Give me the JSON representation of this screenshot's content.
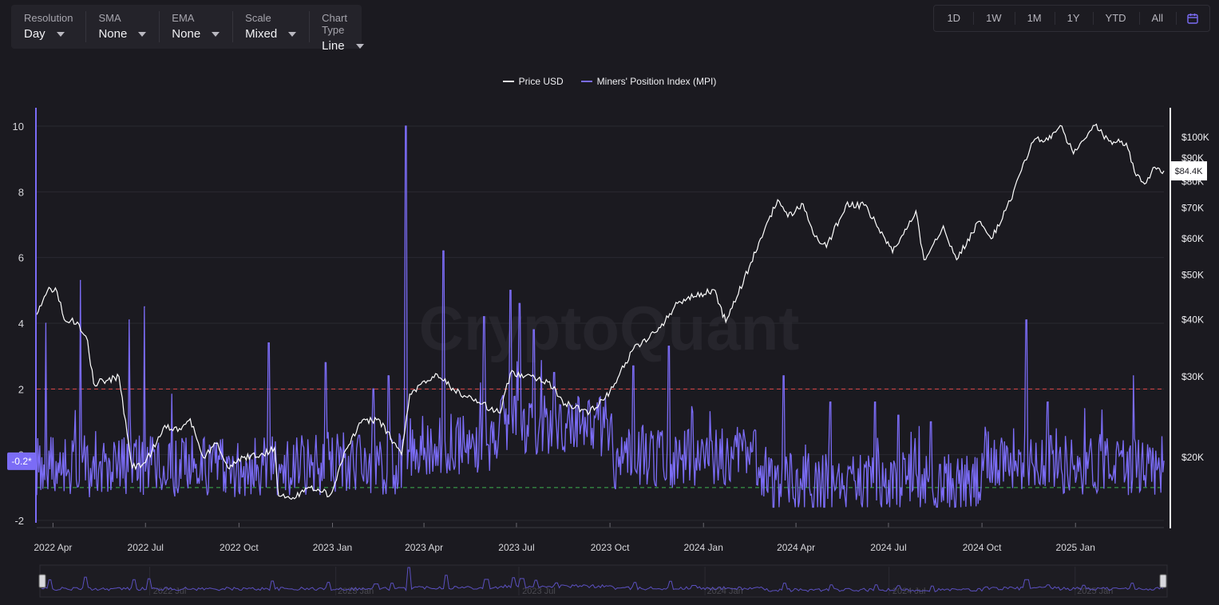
{
  "settings": [
    {
      "label": "Resolution",
      "value": "Day"
    },
    {
      "label": "SMA",
      "value": "None"
    },
    {
      "label": "EMA",
      "value": "None"
    },
    {
      "label": "Scale",
      "value": "Mixed"
    },
    {
      "label": "Chart Type",
      "value": "Line"
    }
  ],
  "ranges": [
    "1D",
    "1W",
    "1M",
    "1Y",
    "YTD",
    "All"
  ],
  "watermark": "CryptoQuant",
  "colors": {
    "price": "#ffffff",
    "mpi": "#7b6cf6",
    "upper_threshold": "#e04848",
    "lower_threshold": "#3fb34f",
    "background": "#1b1a20"
  },
  "icons": {
    "calendar": "calendar-icon",
    "dropdown": "chevron-down-icon"
  },
  "current_labels": {
    "mpi": "-0.2*",
    "price": "$84.4K"
  },
  "navigator_ticks": [
    "2022 Jul",
    "2023 Jan",
    "2023 Jul",
    "2024 Jan",
    "2024 Jul",
    "2025 Jan"
  ],
  "chart_data": {
    "type": "line",
    "title": "",
    "legend_position": "top-center",
    "grid": true,
    "x_ticks": [
      "2022 Apr",
      "2022 Jul",
      "2022 Oct",
      "2023 Jan",
      "2023 Apr",
      "2023 Jul",
      "2023 Oct",
      "2024 Jan",
      "2024 Apr",
      "2024 Jul",
      "2024 Oct",
      "2025 Jan"
    ],
    "x_range": [
      "2022-03-16",
      "2025-03-29"
    ],
    "y_left": {
      "ticks": [
        10,
        8,
        6,
        4,
        2,
        0,
        -2
      ],
      "range": [
        -2,
        10
      ]
    },
    "y_right": {
      "scale": "log",
      "ticks": [
        "$100K",
        "$90K",
        "$80K",
        "$70K",
        "$60K",
        "$50K",
        "$40K",
        "$30K",
        "$20K"
      ],
      "tick_values": [
        100000,
        90000,
        80000,
        70000,
        60000,
        50000,
        40000,
        30000,
        20000
      ],
      "range": [
        15000,
        110000
      ]
    },
    "reference_lines": [
      {
        "axis": "left",
        "value": 2,
        "style": "dashed",
        "color": "#e04848"
      },
      {
        "axis": "left",
        "value": -1,
        "style": "dashed",
        "color": "#3fb34f"
      }
    ],
    "series": [
      {
        "name": "Price USD",
        "axis": "right",
        "points": [
          [
            "2022-03-16",
            41000
          ],
          [
            "2022-03-28",
            47000
          ],
          [
            "2022-04-05",
            46000
          ],
          [
            "2022-04-12",
            40000
          ],
          [
            "2022-04-25",
            39500
          ],
          [
            "2022-05-05",
            36000
          ],
          [
            "2022-05-11",
            29000
          ],
          [
            "2022-05-25",
            29500
          ],
          [
            "2022-06-05",
            30000
          ],
          [
            "2022-06-13",
            22500
          ],
          [
            "2022-06-18",
            19000
          ],
          [
            "2022-07-01",
            19500
          ],
          [
            "2022-07-20",
            23500
          ],
          [
            "2022-08-05",
            23000
          ],
          [
            "2022-08-14",
            24300
          ],
          [
            "2022-08-27",
            20000
          ],
          [
            "2022-09-10",
            21500
          ],
          [
            "2022-09-20",
            19000
          ],
          [
            "2022-10-05",
            20000
          ],
          [
            "2022-10-25",
            20300
          ],
          [
            "2022-11-05",
            21000
          ],
          [
            "2022-11-09",
            16500
          ],
          [
            "2022-11-20",
            16300
          ],
          [
            "2022-12-10",
            17200
          ],
          [
            "2022-12-30",
            16600
          ],
          [
            "2023-01-14",
            20800
          ],
          [
            "2023-01-29",
            23800
          ],
          [
            "2023-02-15",
            24300
          ],
          [
            "2023-03-10",
            20300
          ],
          [
            "2023-03-18",
            27500
          ],
          [
            "2023-04-14",
            30400
          ],
          [
            "2023-05-01",
            28000
          ],
          [
            "2023-05-25",
            26400
          ],
          [
            "2023-06-15",
            25000
          ],
          [
            "2023-06-25",
            30500
          ],
          [
            "2023-07-14",
            30300
          ],
          [
            "2023-08-01",
            29200
          ],
          [
            "2023-08-18",
            26200
          ],
          [
            "2023-09-11",
            25100
          ],
          [
            "2023-10-01",
            27900
          ],
          [
            "2023-10-24",
            34500
          ],
          [
            "2023-11-15",
            37500
          ],
          [
            "2023-12-08",
            43800
          ],
          [
            "2024-01-11",
            46500
          ],
          [
            "2024-01-23",
            39500
          ],
          [
            "2024-02-15",
            52000
          ],
          [
            "2024-03-05",
            66000
          ],
          [
            "2024-03-14",
            73000
          ],
          [
            "2024-03-24",
            67000
          ],
          [
            "2024-04-08",
            71500
          ],
          [
            "2024-04-18",
            61500
          ],
          [
            "2024-05-01",
            57500
          ],
          [
            "2024-05-20",
            71000
          ],
          [
            "2024-06-07",
            71000
          ],
          [
            "2024-06-26",
            61000
          ],
          [
            "2024-07-05",
            56000
          ],
          [
            "2024-07-28",
            69000
          ],
          [
            "2024-08-05",
            54000
          ],
          [
            "2024-08-24",
            64000
          ],
          [
            "2024-09-06",
            54000
          ],
          [
            "2024-09-28",
            65500
          ],
          [
            "2024-10-10",
            60000
          ],
          [
            "2024-10-29",
            72500
          ],
          [
            "2024-11-12",
            89000
          ],
          [
            "2024-11-22",
            99000
          ],
          [
            "2024-12-05",
            98500
          ],
          [
            "2024-12-17",
            106000
          ],
          [
            "2024-12-30",
            92000
          ],
          [
            "2025-01-20",
            106000
          ],
          [
            "2025-02-03",
            98000
          ],
          [
            "2025-02-20",
            97000
          ],
          [
            "2025-02-28",
            84000
          ],
          [
            "2025-03-10",
            79000
          ],
          [
            "2025-03-20",
            86000
          ],
          [
            "2025-03-29",
            84400
          ]
        ]
      },
      {
        "name": "Miners' Position Index (MPI)",
        "axis": "left",
        "spikes": [
          [
            "2022-03-25",
            4.0
          ],
          [
            "2022-04-28",
            5.3
          ],
          [
            "2022-06-15",
            4.1
          ],
          [
            "2022-06-30",
            4.5
          ],
          [
            "2022-10-30",
            3.4
          ],
          [
            "2022-12-25",
            2.8
          ],
          [
            "2023-02-10",
            2.0
          ],
          [
            "2023-02-25",
            2.4
          ],
          [
            "2023-03-14",
            10.0
          ],
          [
            "2023-04-20",
            6.2
          ],
          [
            "2023-05-30",
            4.2
          ],
          [
            "2023-06-25",
            5.0
          ],
          [
            "2023-07-04",
            4.6
          ],
          [
            "2023-07-18",
            3.8
          ],
          [
            "2023-08-07",
            2.5
          ],
          [
            "2023-10-24",
            2.7
          ],
          [
            "2023-11-28",
            3.3
          ],
          [
            "2023-12-21",
            1.3
          ],
          [
            "2024-03-20",
            2.4
          ],
          [
            "2024-05-05",
            1.6
          ],
          [
            "2024-06-18",
            1.6
          ],
          [
            "2024-07-11",
            1.2
          ],
          [
            "2024-08-12",
            1.0
          ],
          [
            "2024-10-05",
            0.6
          ],
          [
            "2024-11-14",
            4.1
          ],
          [
            "2024-12-05",
            1.6
          ],
          [
            "2025-01-10",
            1.4
          ],
          [
            "2025-02-27",
            2.4
          ],
          [
            "2025-03-29",
            -0.2
          ]
        ]
      }
    ]
  }
}
